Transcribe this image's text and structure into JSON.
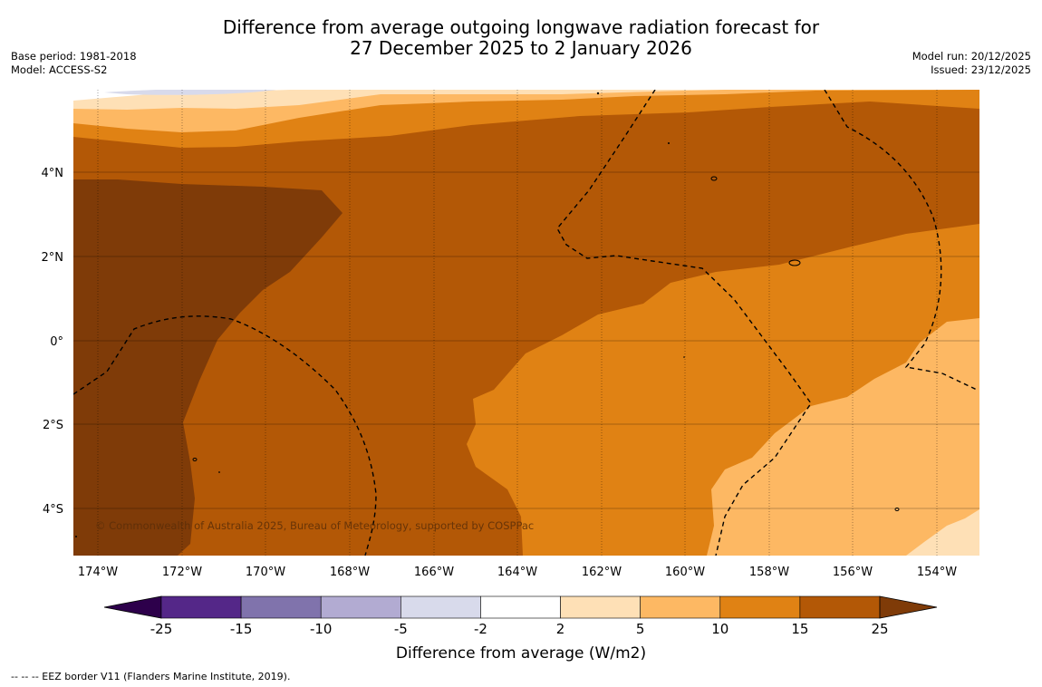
{
  "title_line1": "Difference from average outgoing longwave radiation forecast for",
  "title_line2": "27 December 2025 to 2 January 2026",
  "base_period": "Base period: 1981-2018",
  "model": "Model: ACCESS-S2",
  "model_run": "Model run: 20/12/2025",
  "issued": "Issued: 23/12/2025",
  "copyright": "© Commonwealth of Australia 2025, Bureau of Meteorology, supported by COSPPac",
  "footnote": "--  --  -- EEZ border V11 (Flanders Marine Institute, 2019).",
  "lat_labels": [
    "4°N",
    "2°N",
    "0°",
    "2°S",
    "4°S"
  ],
  "lon_labels": [
    "174°W",
    "172°W",
    "170°W",
    "168°W",
    "166°W",
    "164°W",
    "162°W",
    "160°W",
    "158°W",
    "156°W",
    "154°W"
  ],
  "colorbar": {
    "label": "Difference from average (W/m2)",
    "ticks": [
      "-25",
      "-15",
      "-10",
      "-5",
      "-2",
      "2",
      "5",
      "10",
      "15",
      "25"
    ],
    "colors": [
      "#542788",
      "#8073ac",
      "#b2abd2",
      "#d8daeb",
      "#ffffff",
      "#fee0b6",
      "#fdb863",
      "#e08214",
      "#b35806"
    ],
    "under_color": "#2d004b",
    "over_color": "#7f3b08"
  }
}
